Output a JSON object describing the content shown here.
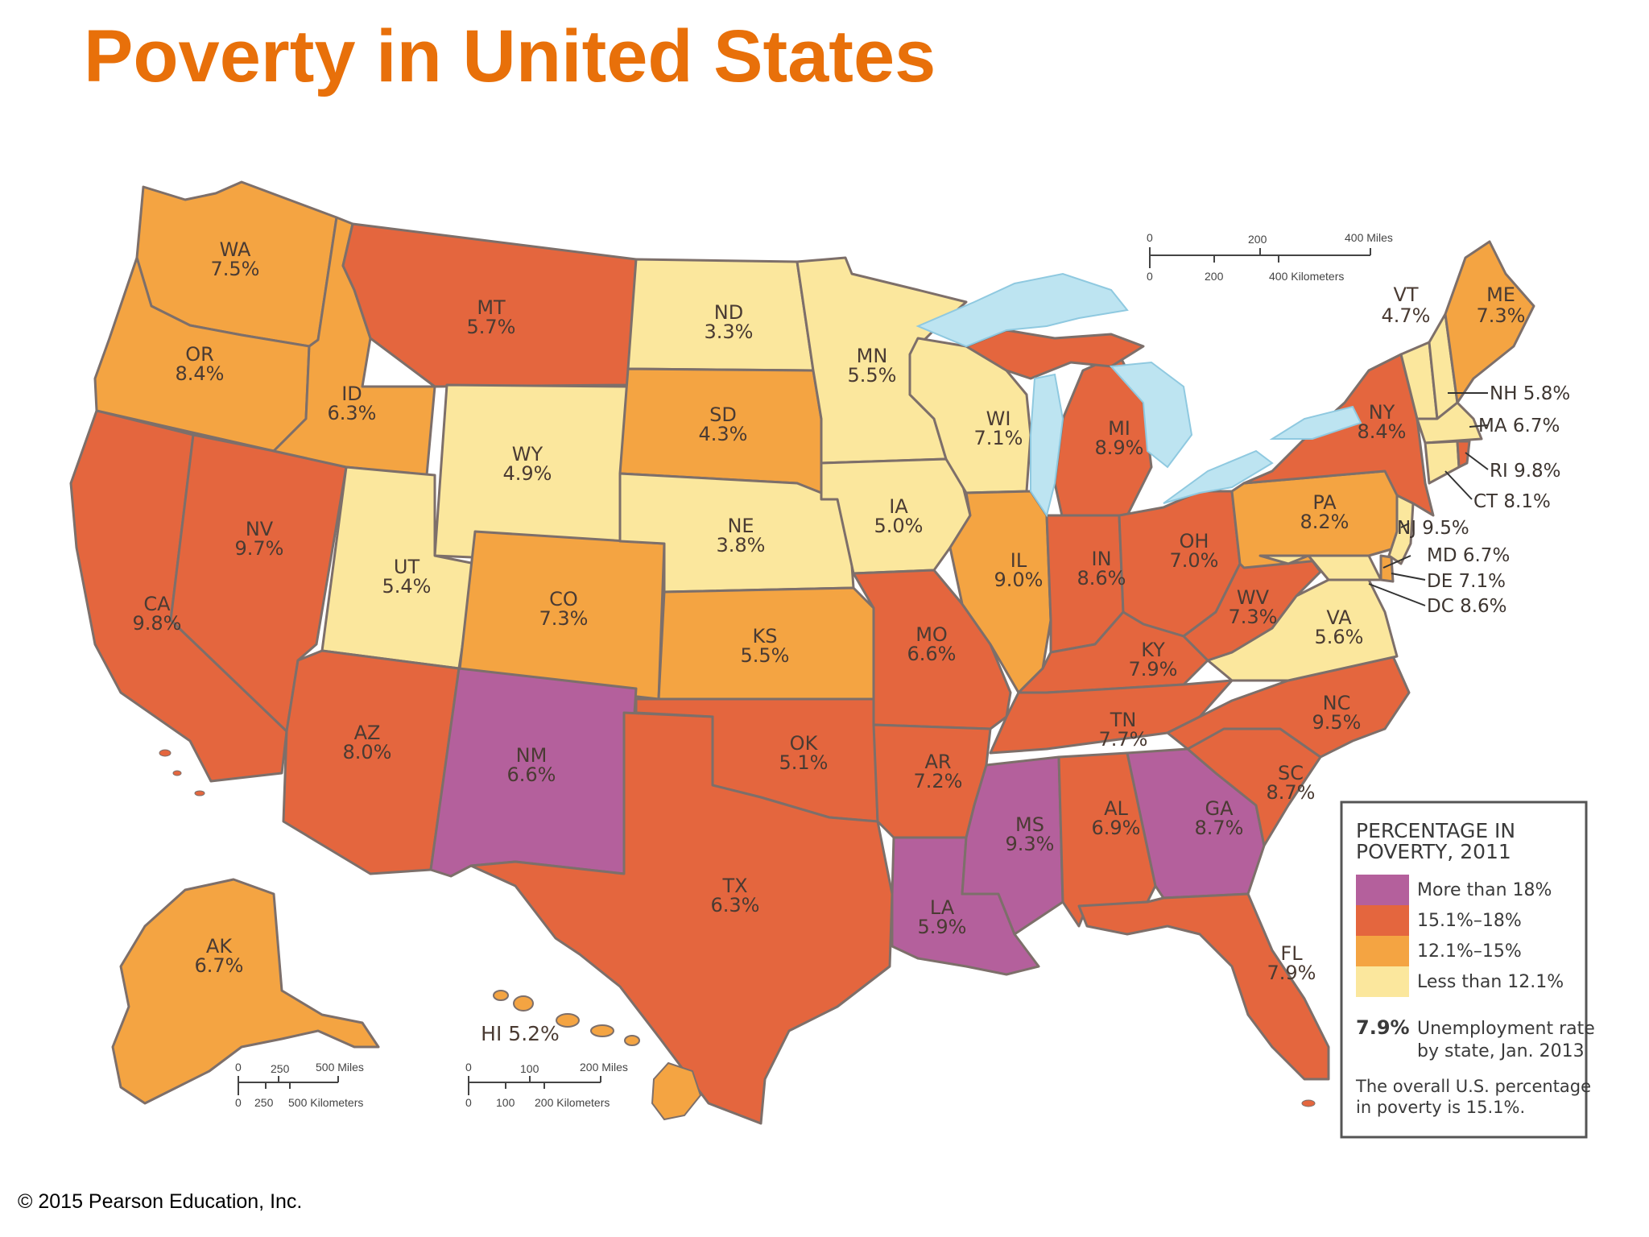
{
  "title": "Poverty in United States",
  "copyright": "© 2015 Pearson Education, Inc.",
  "colors": {
    "more_than_18": "#b4609c",
    "c15_1_to_18": "#e4663e",
    "c12_1_to_15": "#f4a442",
    "less_than_12_1": "#fbe79d",
    "water": "#bde4f1"
  },
  "legend": {
    "title_line1": "PERCENTAGE IN",
    "title_line2": "POVERTY, 2011",
    "items": [
      {
        "label": "More than 18%",
        "color": "#b4609c"
      },
      {
        "label": "15.1%–18%",
        "color": "#e4663e"
      },
      {
        "label": "12.1%–15%",
        "color": "#f4a442"
      },
      {
        "label": "Less than 12.1%",
        "color": "#fbe79d"
      }
    ],
    "sample_value": "7.9%",
    "unemp_line1": "Unemployment rate",
    "unemp_line2": "by state, Jan. 2013",
    "note_line1": "The overall U.S. percentage",
    "note_line2": "in poverty is 15.1%."
  },
  "scales": {
    "main": {
      "miles_0": "0",
      "miles_200": "200",
      "miles_400": "400 Miles",
      "km_0": "0",
      "km_200": "200",
      "km_400": "400 Kilometers"
    },
    "alaska": {
      "miles_0": "0",
      "miles_250": "250",
      "miles_500": "500 Miles",
      "km_0": "0",
      "km_250": "250",
      "km_500": "500 Kilometers"
    },
    "hawaii": {
      "miles_0": "0",
      "miles_100": "100",
      "miles_200": "200 Miles",
      "km_0": "0",
      "km_100": "100",
      "km_200": "200 Kilometers"
    }
  },
  "states": {
    "WA": {
      "abbr": "WA",
      "rate": "7.5%",
      "category": "12.1%–15%"
    },
    "OR": {
      "abbr": "OR",
      "rate": "8.4%",
      "category": "12.1%–15%"
    },
    "CA": {
      "abbr": "CA",
      "rate": "9.8%",
      "category": "15.1%–18%"
    },
    "NV": {
      "abbr": "NV",
      "rate": "9.7%",
      "category": "15.1%–18%"
    },
    "ID": {
      "abbr": "ID",
      "rate": "6.3%",
      "category": "12.1%–15%"
    },
    "MT": {
      "abbr": "MT",
      "rate": "5.7%",
      "category": "15.1%–18%"
    },
    "WY": {
      "abbr": "WY",
      "rate": "4.9%",
      "category": "Less than 12.1%"
    },
    "UT": {
      "abbr": "UT",
      "rate": "5.4%",
      "category": "Less than 12.1%"
    },
    "AZ": {
      "abbr": "AZ",
      "rate": "8.0%",
      "category": "15.1%–18%"
    },
    "CO": {
      "abbr": "CO",
      "rate": "7.3%",
      "category": "12.1%–15%"
    },
    "NM": {
      "abbr": "NM",
      "rate": "6.6%",
      "category": "More than 18%"
    },
    "ND": {
      "abbr": "ND",
      "rate": "3.3%",
      "category": "Less than 12.1%"
    },
    "SD": {
      "abbr": "SD",
      "rate": "4.3%",
      "category": "12.1%–15%"
    },
    "NE": {
      "abbr": "NE",
      "rate": "3.8%",
      "category": "Less than 12.1%"
    },
    "KS": {
      "abbr": "KS",
      "rate": "5.5%",
      "category": "12.1%–15%"
    },
    "OK": {
      "abbr": "OK",
      "rate": "5.1%",
      "category": "15.1%–18%"
    },
    "TX": {
      "abbr": "TX",
      "rate": "6.3%",
      "category": "15.1%–18%"
    },
    "MN": {
      "abbr": "MN",
      "rate": "5.5%",
      "category": "Less than 12.1%"
    },
    "IA": {
      "abbr": "IA",
      "rate": "5.0%",
      "category": "Less than 12.1%"
    },
    "MO": {
      "abbr": "MO",
      "rate": "6.6%",
      "category": "15.1%–18%"
    },
    "AR": {
      "abbr": "AR",
      "rate": "7.2%",
      "category": "15.1%–18%"
    },
    "LA": {
      "abbr": "LA",
      "rate": "5.9%",
      "category": "More than 18%"
    },
    "WI": {
      "abbr": "WI",
      "rate": "7.1%",
      "category": "Less than 12.1%"
    },
    "IL": {
      "abbr": "IL",
      "rate": "9.0%",
      "category": "12.1%–15%"
    },
    "MI": {
      "abbr": "MI",
      "rate": "8.9%",
      "category": "15.1%–18%"
    },
    "IN": {
      "abbr": "IN",
      "rate": "8.6%",
      "category": "15.1%–18%"
    },
    "OH": {
      "abbr": "OH",
      "rate": "7.0%",
      "category": "15.1%–18%"
    },
    "KY": {
      "abbr": "KY",
      "rate": "7.9%",
      "category": "15.1%–18%"
    },
    "TN": {
      "abbr": "TN",
      "rate": "7.7%",
      "category": "15.1%–18%"
    },
    "MS": {
      "abbr": "MS",
      "rate": "9.3%",
      "category": "More than 18%"
    },
    "AL": {
      "abbr": "AL",
      "rate": "6.9%",
      "category": "15.1%–18%"
    },
    "GA": {
      "abbr": "GA",
      "rate": "8.7%",
      "category": "More than 18%"
    },
    "FL": {
      "abbr": "FL",
      "rate": "7.9%",
      "category": "15.1%–18%"
    },
    "SC": {
      "abbr": "SC",
      "rate": "8.7%",
      "category": "15.1%–18%"
    },
    "NC": {
      "abbr": "NC",
      "rate": "9.5%",
      "category": "15.1%–18%"
    },
    "VA": {
      "abbr": "VA",
      "rate": "5.6%",
      "category": "Less than 12.1%"
    },
    "WV": {
      "abbr": "WV",
      "rate": "7.3%",
      "category": "15.1%–18%"
    },
    "PA": {
      "abbr": "PA",
      "rate": "8.2%",
      "category": "12.1%–15%"
    },
    "NY": {
      "abbr": "NY",
      "rate": "8.4%",
      "category": "15.1%–18%"
    },
    "VT": {
      "abbr": "VT",
      "rate": "4.7%",
      "category": "Less than 12.1%"
    },
    "ME": {
      "abbr": "ME",
      "rate": "7.3%",
      "category": "12.1%–15%"
    },
    "AK": {
      "abbr": "AK",
      "rate": "6.7%",
      "category": "12.1%–15%"
    },
    "HI": {
      "label": "HI 5.2%",
      "category": "12.1%–15%"
    }
  },
  "callouts": {
    "NH": "NH 5.8%",
    "MA": "MA 6.7%",
    "RI": "RI 9.8%",
    "CT": "CT 8.1%",
    "NJ": "NJ 9.5%",
    "MD": "MD 6.7%",
    "DE": "DE 7.1%",
    "DC": "DC 8.6%"
  }
}
